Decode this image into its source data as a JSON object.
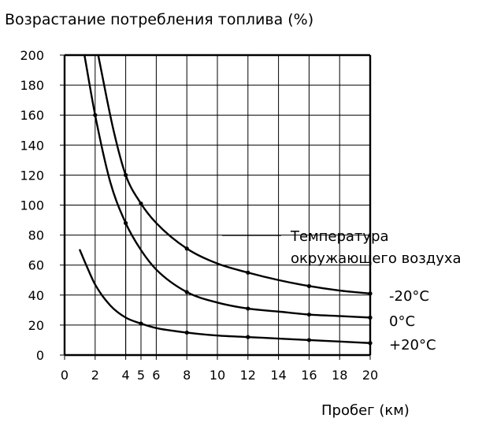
{
  "chart_data": {
    "type": "line",
    "title": "Возрастание потребления топлива (%)",
    "xlabel": "Пробег (км)",
    "ylabel": "",
    "xlim": [
      0,
      20
    ],
    "ylim": [
      0,
      200
    ],
    "x_ticks": [
      "0",
      "2",
      "4",
      "5",
      "6",
      "8",
      "10",
      "12",
      "14",
      "16",
      "18",
      "20"
    ],
    "y_ticks": [
      "200",
      "180",
      "160",
      "140",
      "120",
      "100",
      "80",
      "60",
      "40",
      "20",
      "0"
    ],
    "grid": true,
    "legend_title": [
      "Температура",
      "окружающего воздуха"
    ],
    "series": [
      {
        "name": "-20°C",
        "x": [
          2.2,
          3.2,
          4,
          5,
          6,
          8,
          10,
          12,
          14,
          16,
          18,
          20
        ],
        "values": [
          200,
          150,
          120,
          101,
          88,
          71,
          61,
          55,
          50,
          46,
          43,
          41
        ]
      },
      {
        "name": "0°C",
        "x": [
          1.3,
          2,
          3,
          4,
          5,
          6,
          8,
          10,
          12,
          14,
          16,
          18,
          20
        ],
        "values": [
          200,
          160,
          115,
          88,
          70,
          57,
          42,
          35,
          31,
          29,
          27,
          26,
          25
        ]
      },
      {
        "name": "+20°C",
        "x": [
          1,
          1.5,
          2,
          3,
          4,
          5,
          6,
          8,
          10,
          12,
          14,
          16,
          18,
          20
        ],
        "values": [
          70,
          58,
          47,
          33,
          25,
          21,
          18,
          15,
          13,
          12,
          11,
          10,
          9,
          8
        ]
      }
    ],
    "markers": {
      "-20°C": [
        4,
        5,
        8,
        12,
        16,
        20
      ],
      "0°C": [
        2,
        4,
        8,
        12,
        16,
        20
      ],
      "+20°C": [
        5,
        8,
        12,
        16,
        20
      ]
    },
    "reference_lines": [
      {
        "x": 4,
        "y": 100
      },
      {
        "x": 5,
        "y": 100
      }
    ]
  }
}
